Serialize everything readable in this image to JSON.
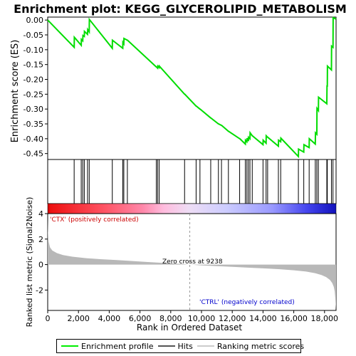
{
  "chart_data": {
    "type": "line",
    "title": "Enrichment plot: KEGG_GLYCEROLIPID_METABOLISM",
    "es_panel": {
      "ylabel": "Enrichment score (ES)",
      "ylim": [
        -0.47,
        0.01
      ],
      "yticks": [
        0.0,
        -0.05,
        -0.1,
        -0.15,
        -0.2,
        -0.25,
        -0.3,
        -0.35,
        -0.4,
        -0.45
      ],
      "ytick_labels": [
        "0.00",
        "-0.05",
        "-0.10",
        "-0.15",
        "-0.20",
        "-0.25",
        "-0.30",
        "-0.35",
        "-0.40",
        "-0.45"
      ],
      "series": [
        {
          "name": "Enrichment profile",
          "color": "#00dd00",
          "x": [
            0,
            1720,
            1730,
            2180,
            2190,
            2280,
            2290,
            2380,
            2390,
            2590,
            2600,
            2700,
            2710,
            4200,
            4210,
            4880,
            4890,
            4950,
            4960,
            5180,
            5190,
            7060,
            7070,
            7150,
            7160,
            7250,
            7260,
            8900,
            8910,
            9650,
            9660,
            9900,
            9910,
            10600,
            10610,
            11100,
            11110,
            11300,
            11310,
            11750,
            11760,
            12480,
            12490,
            12850,
            12860,
            12950,
            12960,
            13050,
            13060,
            13150,
            13160,
            13300,
            13310,
            14000,
            14010,
            14200,
            14210,
            14300,
            14310,
            15000,
            15010,
            15150,
            15160,
            16300,
            16310,
            16650,
            16660,
            17000,
            17010,
            17400,
            17410,
            17500,
            17510,
            17600,
            17610,
            18150,
            18160,
            18180,
            18190,
            18450,
            18460,
            18550,
            18560,
            18750
          ],
          "y": [
            0.0,
            -0.092,
            -0.058,
            -0.085,
            -0.065,
            -0.07,
            -0.052,
            -0.055,
            -0.038,
            -0.048,
            -0.032,
            -0.04,
            0.002,
            -0.095,
            -0.068,
            -0.095,
            -0.075,
            -0.08,
            -0.062,
            -0.068,
            -0.068,
            -0.158,
            -0.158,
            -0.162,
            -0.155,
            -0.16,
            -0.155,
            -0.25,
            -0.25,
            -0.29,
            -0.29,
            -0.3,
            -0.3,
            -0.33,
            -0.33,
            -0.35,
            -0.35,
            -0.355,
            -0.355,
            -0.375,
            -0.375,
            -0.4,
            -0.4,
            -0.418,
            -0.405,
            -0.41,
            -0.398,
            -0.408,
            -0.395,
            -0.4,
            -0.38,
            -0.39,
            -0.39,
            -0.42,
            -0.405,
            -0.415,
            -0.39,
            -0.395,
            -0.395,
            -0.425,
            -0.405,
            -0.41,
            -0.398,
            -0.46,
            -0.435,
            -0.445,
            -0.42,
            -0.43,
            -0.4,
            -0.418,
            -0.38,
            -0.385,
            -0.298,
            -0.305,
            -0.26,
            -0.282,
            -0.22,
            -0.225,
            -0.155,
            -0.168,
            -0.088,
            -0.092,
            0.008,
            0.003
          ]
        }
      ]
    },
    "hits": {
      "label": "Hits",
      "positions": [
        1720,
        2180,
        2280,
        2380,
        2590,
        2700,
        4200,
        4880,
        4950,
        5180,
        7060,
        7150,
        7250,
        8900,
        9650,
        9900,
        10600,
        11100,
        11300,
        11750,
        12480,
        12850,
        12950,
        13050,
        13150,
        13300,
        14000,
        14200,
        14300,
        15000,
        15150,
        16300,
        16650,
        17000,
        17400,
        17500,
        17600,
        18150,
        18180,
        18450,
        18550
      ]
    },
    "metric_panel": {
      "ylabel": "Ranked list metric (Signal2Noise)",
      "xlabel": "Rank in Ordered Dataset",
      "ylim": [
        -3.6,
        4.0
      ],
      "yticks": [
        4,
        2,
        0,
        -2
      ],
      "xlim": [
        0,
        18750
      ],
      "xticks": [
        0,
        2000,
        4000,
        6000,
        8000,
        10000,
        12000,
        14000,
        16000,
        18000
      ],
      "xtick_labels": [
        "0",
        "2,000",
        "4,000",
        "6,000",
        "8,000",
        "10,000",
        "12,000",
        "14,000",
        "16,000",
        "18,000"
      ],
      "zero_cross": 9238,
      "zero_cross_label": "Zero cross at 9238",
      "pos_label": "'CTX' (positively correlated)",
      "neg_label": "'CTRL' (negatively correlated)",
      "profile": {
        "x": [
          0,
          20,
          60,
          150,
          300,
          600,
          1000,
          1600,
          2500,
          3500,
          4500,
          5500,
          6500,
          7500,
          8500,
          9238,
          10000,
          11000,
          12000,
          13000,
          14000,
          15000,
          16000,
          16800,
          17400,
          17800,
          18100,
          18350,
          18500,
          18600,
          18660,
          18700,
          18730,
          18750
        ],
        "y": [
          3.6,
          2.6,
          1.8,
          1.35,
          1.1,
          0.9,
          0.75,
          0.62,
          0.5,
          0.42,
          0.35,
          0.28,
          0.2,
          0.13,
          0.06,
          0.0,
          -0.06,
          -0.12,
          -0.18,
          -0.24,
          -0.3,
          -0.36,
          -0.45,
          -0.55,
          -0.68,
          -0.82,
          -0.98,
          -1.2,
          -1.45,
          -1.75,
          -2.1,
          -2.6,
          -3.2,
          -3.5
        ]
      }
    },
    "legend": {
      "items": [
        {
          "label": "Enrichment profile",
          "color": "#00ee00"
        },
        {
          "label": "Hits",
          "color": "#555555"
        },
        {
          "label": "Ranking metric scores",
          "color": "#cccccc"
        }
      ]
    },
    "colors": {
      "es_line": "#00dd00",
      "hits": "#000000",
      "metric_fill": "#b8b8b8",
      "pos_text": "#cc0000",
      "neg_text": "#0000cc",
      "zero_line": "#999999",
      "gradient_stops": [
        "#ee0000",
        "#ff6666",
        "#ff99bb",
        "#ddbbee",
        "#ccccff",
        "#8888ff",
        "#2222cc"
      ]
    }
  }
}
